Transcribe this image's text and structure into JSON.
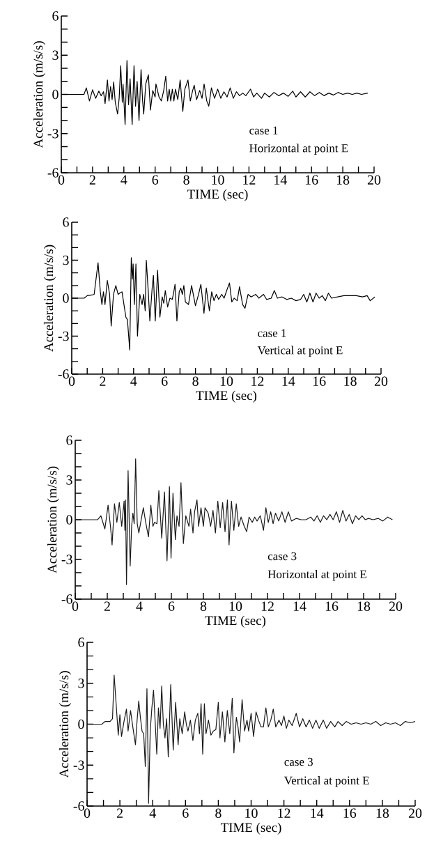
{
  "chart_data": [
    {
      "type": "line",
      "xlabel": "TIME (sec)",
      "ylabel": "Acceleration (m/s/s)",
      "annotations": [
        "case 1",
        "Horizontal at point E"
      ],
      "xlim": [
        0,
        20
      ],
      "ylim": [
        -6,
        6
      ],
      "xticks": [
        0,
        {
          "value": 1,
          "label": null
        },
        2,
        {
          "value": 3,
          "label": null
        },
        4,
        {
          "value": 5,
          "label": null
        },
        6,
        {
          "value": 7,
          "label": null
        },
        8,
        {
          "value": 9,
          "label": null
        },
        10,
        {
          "value": 11,
          "label": null
        },
        12,
        {
          "value": 13,
          "label": null
        },
        14,
        {
          "value": 15,
          "label": null
        },
        16,
        {
          "value": 17,
          "label": null
        },
        18,
        {
          "value": 19,
          "label": null
        },
        20
      ],
      "yticks": [
        -6,
        {
          "value": -5,
          "label": null
        },
        {
          "value": -4,
          "label": null
        },
        -3,
        {
          "value": -2,
          "label": null
        },
        {
          "value": -1,
          "label": null
        },
        0,
        {
          "value": 1,
          "label": null
        },
        {
          "value": 2,
          "label": null
        },
        3,
        {
          "value": 4,
          "label": null
        },
        {
          "value": 5,
          "label": null
        },
        6
      ],
      "x": [
        0,
        1.45,
        1.6,
        1.8,
        2.0,
        2.2,
        2.4,
        2.55,
        2.7,
        2.8,
        2.95,
        3.05,
        3.15,
        3.25,
        3.35,
        3.45,
        3.6,
        3.7,
        3.8,
        3.9,
        3.95,
        4.08,
        4.2,
        4.3,
        4.4,
        4.53,
        4.65,
        4.75,
        4.85,
        4.97,
        5.1,
        5.2,
        5.27,
        5.4,
        5.57,
        5.7,
        5.85,
        6.0,
        6.05,
        6.25,
        6.4,
        6.55,
        6.68,
        6.8,
        6.9,
        7.0,
        7.1,
        7.2,
        7.3,
        7.45,
        7.6,
        7.77,
        7.9,
        8.1,
        8.25,
        8.4,
        8.5,
        8.65,
        8.85,
        9.0,
        9.13,
        9.3,
        9.43,
        9.6,
        9.8,
        10.0,
        10.2,
        10.4,
        10.6,
        10.8,
        11.0,
        11.2,
        11.4,
        11.6,
        11.8,
        12.1,
        12.3,
        12.5,
        12.8,
        13.0,
        13.3,
        13.6,
        13.9,
        14.2,
        14.5,
        14.8,
        15.0,
        15.3,
        15.6,
        15.9,
        16.2,
        16.5,
        16.8,
        17.1,
        17.4,
        17.7,
        18.0,
        18.3,
        18.6,
        18.9,
        19.2,
        19.6
      ],
      "series": [
        {
          "color": "#000000",
          "values": [
            0,
            0,
            0.5,
            -0.5,
            0.35,
            -0.3,
            0.25,
            -0.1,
            0.2,
            -0.7,
            1.1,
            -0.5,
            0.6,
            -0.4,
            0.95,
            -0.6,
            -1.5,
            -0.3,
            2.2,
            -0.6,
            0.8,
            -2.3,
            2.6,
            -0.8,
            1.2,
            -2.3,
            2.2,
            -0.9,
            1.0,
            -2.0,
            1.9,
            -0.5,
            -1.5,
            0.8,
            1.5,
            -1.2,
            0.3,
            -0.2,
            0.8,
            -0.2,
            -0.5,
            0.3,
            1.4,
            -0.5,
            0.4,
            -0.5,
            0.4,
            -0.5,
            0.4,
            -0.4,
            1.1,
            -1.3,
            0.4,
            1.1,
            -0.5,
            0.3,
            0.7,
            -0.4,
            0.3,
            -0.3,
            0.8,
            -0.5,
            -0.9,
            0.5,
            -0.3,
            0.4,
            -0.3,
            0.2,
            -0.2,
            0.5,
            -0.3,
            0.2,
            -0.1,
            0.1,
            -0.1,
            0.4,
            -0.2,
            0.1,
            -0.3,
            0.1,
            -0.2,
            0.15,
            -0.1,
            0.1,
            -0.15,
            0.25,
            -0.2,
            0.2,
            -0.2,
            0.2,
            -0.1,
            0.15,
            -0.1,
            0.1,
            -0.05,
            0.15,
            0,
            0.1,
            0,
            0.1,
            0,
            0.1
          ]
        }
      ]
    },
    {
      "type": "line",
      "xlabel": "TIME (sec)",
      "ylabel": "Acceleration (m/s/s)",
      "annotations": [
        "case 1",
        "Vertical at point E"
      ],
      "xlim": [
        0,
        20
      ],
      "ylim": [
        -6,
        6
      ],
      "xticks": [
        0,
        {
          "value": 1,
          "label": null
        },
        2,
        {
          "value": 3,
          "label": null
        },
        4,
        {
          "value": 5,
          "label": null
        },
        6,
        {
          "value": 7,
          "label": null
        },
        8,
        {
          "value": 9,
          "label": null
        },
        10,
        {
          "value": 11,
          "label": null
        },
        12,
        {
          "value": 13,
          "label": null
        },
        14,
        {
          "value": 15,
          "label": null
        },
        16,
        {
          "value": 17,
          "label": null
        },
        18,
        {
          "value": 19,
          "label": null
        },
        20
      ],
      "yticks": [
        -6,
        {
          "value": -5,
          "label": null
        },
        {
          "value": -4,
          "label": null
        },
        -3,
        {
          "value": -2,
          "label": null
        },
        {
          "value": -1,
          "label": null
        },
        0,
        {
          "value": 1,
          "label": null
        },
        {
          "value": 2,
          "label": null
        },
        3,
        {
          "value": 4,
          "label": null
        },
        {
          "value": 5,
          "label": null
        },
        6
      ],
      "x": [
        0,
        0.8,
        1.0,
        1.3,
        1.45,
        1.7,
        1.85,
        1.95,
        2.05,
        2.15,
        2.3,
        2.45,
        2.55,
        2.7,
        2.85,
        3.0,
        3.1,
        3.25,
        3.35,
        3.5,
        3.6,
        3.75,
        3.85,
        3.92,
        3.97,
        4.05,
        4.15,
        4.25,
        4.4,
        4.55,
        4.65,
        4.75,
        4.82,
        4.95,
        5.05,
        5.2,
        5.28,
        5.4,
        5.55,
        5.7,
        5.85,
        5.95,
        6.05,
        6.2,
        6.35,
        6.5,
        6.6,
        6.68,
        6.8,
        6.95,
        7.05,
        7.15,
        7.25,
        7.35,
        7.55,
        7.75,
        8.0,
        8.2,
        8.35,
        8.55,
        8.7,
        8.9,
        9.05,
        9.2,
        9.35,
        9.5,
        9.7,
        9.85,
        10.05,
        10.2,
        10.35,
        10.5,
        10.7,
        10.85,
        11.05,
        11.2,
        11.4,
        11.6,
        11.9,
        12.1,
        12.4,
        12.6,
        12.9,
        13.1,
        13.3,
        13.6,
        13.9,
        14.2,
        14.5,
        14.8,
        15.0,
        15.2,
        15.4,
        15.6,
        15.8,
        16.0,
        16.2,
        16.4,
        16.6,
        16.8,
        17.2,
        17.6,
        18.0,
        18.4,
        18.8,
        19.1,
        19.3,
        19.6
      ],
      "series": [
        {
          "color": "#000000",
          "values": [
            0,
            0,
            0.2,
            0.25,
            0.3,
            2.8,
            0.5,
            -0.5,
            0.5,
            -0.5,
            1.4,
            0.3,
            -2.2,
            0.3,
            1.0,
            0.3,
            0.4,
            0.5,
            -0.3,
            -1.5,
            -1.7,
            -4.1,
            3.2,
            1.5,
            2.7,
            -0.5,
            2.7,
            -3.0,
            0.3,
            -0.5,
            0.3,
            -1.0,
            3.0,
            0.5,
            -1.8,
            0.8,
            1.8,
            -1.8,
            2.2,
            -1.5,
            0.1,
            -0.4,
            0.6,
            -0.7,
            0.0,
            -0.1,
            0.5,
            1.1,
            -1.8,
            0.5,
            0.8,
            0.3,
            1.0,
            -0.3,
            -0.5,
            1.0,
            -0.6,
            0.3,
            1.1,
            -1.2,
            0.8,
            -1.0,
            0.5,
            -0.2,
            0.3,
            -0.1,
            0.3,
            0.0,
            0.7,
            1.2,
            -0.3,
            0.0,
            -0.2,
            0.9,
            -0.5,
            -0.8,
            0.3,
            0.1,
            0.3,
            0.0,
            0.3,
            -0.1,
            0.0,
            0.6,
            0.0,
            0.1,
            -0.1,
            0.0,
            -0.2,
            -0.1,
            0.3,
            -0.3,
            0.4,
            -0.3,
            0.4,
            0.0,
            0.2,
            -0.2,
            0.4,
            0.0,
            0.1,
            0.2,
            0.2,
            0.2,
            0.1,
            0.2,
            -0.2,
            0.1
          ]
        }
      ]
    },
    {
      "type": "line",
      "xlabel": "TIME (sec)",
      "ylabel": "Acceleration (m/s/s)",
      "annotations": [
        "case 3",
        "Horizontal at point E"
      ],
      "xlim": [
        0,
        20
      ],
      "ylim": [
        -6,
        6
      ],
      "xticks": [
        0,
        {
          "value": 1,
          "label": null
        },
        2,
        {
          "value": 3,
          "label": null
        },
        4,
        {
          "value": 5,
          "label": null
        },
        6,
        {
          "value": 7,
          "label": null
        },
        8,
        {
          "value": 9,
          "label": null
        },
        10,
        {
          "value": 11,
          "label": null
        },
        12,
        {
          "value": 13,
          "label": null
        },
        14,
        {
          "value": 15,
          "label": null
        },
        16,
        {
          "value": 17,
          "label": null
        },
        18,
        {
          "value": 19,
          "label": null
        },
        20
      ],
      "yticks": [
        -6,
        {
          "value": -5,
          "label": null
        },
        {
          "value": -4,
          "label": null
        },
        -3,
        {
          "value": -2,
          "label": null
        },
        {
          "value": -1,
          "label": null
        },
        0,
        {
          "value": 1,
          "label": null
        },
        {
          "value": 2,
          "label": null
        },
        3,
        {
          "value": 4,
          "label": null
        },
        {
          "value": 5,
          "label": null
        },
        6
      ],
      "x": [
        0,
        1.4,
        1.6,
        1.85,
        2.05,
        2.2,
        2.3,
        2.45,
        2.6,
        2.75,
        2.9,
        3.05,
        3.1,
        3.14,
        3.17,
        3.2,
        3.3,
        3.43,
        3.52,
        3.6,
        3.68,
        3.77,
        3.87,
        3.97,
        4.25,
        4.4,
        4.57,
        4.72,
        4.85,
        4.95,
        5.1,
        5.22,
        5.4,
        5.57,
        5.73,
        5.88,
        5.98,
        6.1,
        6.25,
        6.35,
        6.48,
        6.6,
        6.75,
        6.9,
        7.1,
        7.2,
        7.35,
        7.45,
        7.6,
        7.7,
        7.85,
        8.0,
        8.1,
        8.3,
        8.45,
        8.6,
        8.75,
        8.9,
        9.05,
        9.2,
        9.35,
        9.5,
        9.6,
        9.75,
        9.9,
        10.05,
        10.2,
        10.35,
        10.55,
        10.7,
        10.85,
        11.05,
        11.2,
        11.35,
        11.55,
        11.75,
        11.9,
        12.05,
        12.2,
        12.35,
        12.5,
        12.7,
        12.9,
        13.1,
        13.3,
        13.5,
        13.8,
        14.1,
        14.4,
        14.7,
        14.9,
        15.1,
        15.3,
        15.5,
        15.7,
        15.9,
        16.1,
        16.3,
        16.5,
        16.7,
        16.9,
        17.1,
        17.3,
        17.5,
        17.7,
        17.9,
        18.1,
        18.3,
        18.6,
        18.9,
        19.2,
        19.5,
        19.8
      ],
      "series": [
        {
          "color": "#1a1a1a",
          "values": [
            0,
            0,
            0.3,
            -0.7,
            1.1,
            -0.5,
            -1.9,
            1.2,
            -0.2,
            1.3,
            -0.5,
            1.4,
            -0.8,
            1.5,
            -1.5,
            -4.9,
            3.7,
            -3.5,
            -0.5,
            0.5,
            -0.3,
            4.6,
            -0.3,
            -1.0,
            0.9,
            -0.2,
            -1.3,
            1.1,
            -0.5,
            -0.2,
            -0.3,
            2.2,
            -1.4,
            2.1,
            -3.1,
            2.5,
            -2.9,
            2.0,
            -1.5,
            0.3,
            -0.5,
            2.8,
            -1.8,
            0.3,
            -0.5,
            0.8,
            -1.0,
            0.6,
            1.5,
            -0.5,
            0.9,
            -0.5,
            0.9,
            0.5,
            -0.5,
            0.7,
            -1.0,
            1.4,
            -0.6,
            1.3,
            -0.9,
            1.5,
            -1.9,
            1.4,
            -0.8,
            1.2,
            -0.5,
            0.2,
            -0.5,
            -0.9,
            0.2,
            -0.2,
            0.2,
            -0.1,
            0.3,
            -0.8,
            0.9,
            -0.2,
            0.6,
            -0.3,
            0.5,
            -0.1,
            0.6,
            -0.2,
            0.6,
            -0.1,
            0.1,
            0.0,
            0.0,
            0.2,
            -0.1,
            0.3,
            -0.2,
            0.3,
            0.0,
            0.4,
            0.0,
            0.6,
            -0.2,
            0.7,
            -0.1,
            0.4,
            -0.3,
            0.3,
            0.0,
            0.3,
            0.0,
            0.1,
            0.0,
            0.1,
            -0.1,
            0.2,
            0.0
          ]
        }
      ]
    },
    {
      "type": "line",
      "xlabel": "TIME (sec)",
      "ylabel": "Acceleration (m/s/s)",
      "annotations": [
        "case 3",
        "Vertical at point E"
      ],
      "xlim": [
        0,
        20
      ],
      "ylim": [
        -6,
        6
      ],
      "xticks": [
        0,
        {
          "value": 1,
          "label": null
        },
        2,
        {
          "value": 3,
          "label": null
        },
        4,
        {
          "value": 5,
          "label": null
        },
        6,
        {
          "value": 7,
          "label": null
        },
        8,
        {
          "value": 9,
          "label": null
        },
        10,
        {
          "value": 11,
          "label": null
        },
        12,
        {
          "value": 13,
          "label": null
        },
        14,
        {
          "value": 15,
          "label": null
        },
        16,
        {
          "value": 17,
          "label": null
        },
        18,
        {
          "value": 19,
          "label": null
        },
        20
      ],
      "yticks": [
        -6,
        {
          "value": -5,
          "label": null
        },
        {
          "value": -4,
          "label": null
        },
        -3,
        {
          "value": -2,
          "label": null
        },
        {
          "value": -1,
          "label": null
        },
        0,
        {
          "value": 1,
          "label": null
        },
        {
          "value": 2,
          "label": null
        },
        3,
        {
          "value": 4,
          "label": null
        },
        {
          "value": 5,
          "label": null
        },
        6
      ],
      "x": [
        0,
        0.9,
        1.1,
        1.4,
        1.55,
        1.65,
        1.8,
        1.9,
        2.0,
        2.1,
        2.25,
        2.4,
        2.5,
        2.65,
        2.8,
        2.95,
        3.05,
        3.15,
        3.25,
        3.35,
        3.45,
        3.55,
        3.65,
        3.72,
        3.75,
        3.85,
        3.95,
        4.05,
        4.15,
        4.25,
        4.35,
        4.45,
        4.55,
        4.65,
        4.75,
        4.85,
        4.95,
        5.1,
        5.25,
        5.4,
        5.55,
        5.65,
        5.8,
        5.95,
        6.05,
        6.15,
        6.3,
        6.45,
        6.6,
        6.75,
        6.85,
        6.95,
        7.05,
        7.15,
        7.25,
        7.4,
        7.55,
        7.7,
        7.85,
        8.0,
        8.1,
        8.25,
        8.4,
        8.55,
        8.7,
        8.85,
        8.95,
        9.1,
        9.2,
        9.3,
        9.45,
        9.6,
        9.75,
        9.85,
        10.0,
        10.15,
        10.3,
        10.45,
        10.6,
        10.75,
        10.9,
        11.05,
        11.2,
        11.35,
        11.5,
        11.7,
        11.85,
        12.0,
        12.15,
        12.3,
        12.5,
        12.75,
        12.95,
        13.15,
        13.35,
        13.55,
        13.75,
        13.95,
        14.15,
        14.4,
        14.6,
        14.85,
        15.1,
        15.3,
        15.55,
        15.8,
        16.1,
        16.4,
        16.7,
        17.0,
        17.3,
        17.6,
        17.9,
        18.2,
        18.5,
        18.8,
        19.1,
        19.4,
        19.7,
        20.0
      ],
      "series": [
        {
          "color": "#1a1a1a",
          "values": [
            0,
            0,
            0.2,
            0.2,
            0.4,
            3.6,
            1.0,
            -0.8,
            0.7,
            -0.9,
            0.2,
            1.1,
            -0.5,
            1.0,
            -0.3,
            -1.5,
            0.3,
            1.7,
            0.5,
            -0.5,
            -0.7,
            -3.1,
            2.6,
            -2.8,
            -5.8,
            -0.5,
            1.2,
            2.5,
            0.2,
            -2.2,
            1.2,
            -0.3,
            2.8,
            0.0,
            -1.0,
            0.4,
            -2.4,
            2.9,
            -1.9,
            1.6,
            -1.5,
            0.4,
            -0.7,
            0.9,
            0.0,
            -0.5,
            0.3,
            -1.2,
            0.3,
            0.8,
            -0.7,
            1.5,
            -2.2,
            1.5,
            -0.7,
            0.3,
            -0.8,
            -0.5,
            -0.4,
            1.6,
            -1.0,
            0.9,
            -1.3,
            1.0,
            -0.7,
            1.9,
            -2.1,
            0.5,
            -0.2,
            -1.3,
            1.8,
            -0.5,
            0.3,
            -0.5,
            0.8,
            -0.9,
            0.9,
            0.3,
            -0.2,
            -0.2,
            1.2,
            -0.2,
            0.3,
            1.1,
            -0.2,
            0.3,
            -0.1,
            0.6,
            -0.3,
            0.3,
            -0.1,
            0.8,
            -0.2,
            0.4,
            -0.2,
            0.3,
            -0.3,
            0.3,
            -0.3,
            0.3,
            -0.3,
            0.2,
            -0.2,
            0.2,
            -0.1,
            0.2,
            0.0,
            0.1,
            0.0,
            0.1,
            0.0,
            0.2,
            -0.1,
            0.1,
            0.0,
            0.1,
            -0.1,
            0.2,
            0.1,
            0.2
          ]
        }
      ]
    }
  ]
}
